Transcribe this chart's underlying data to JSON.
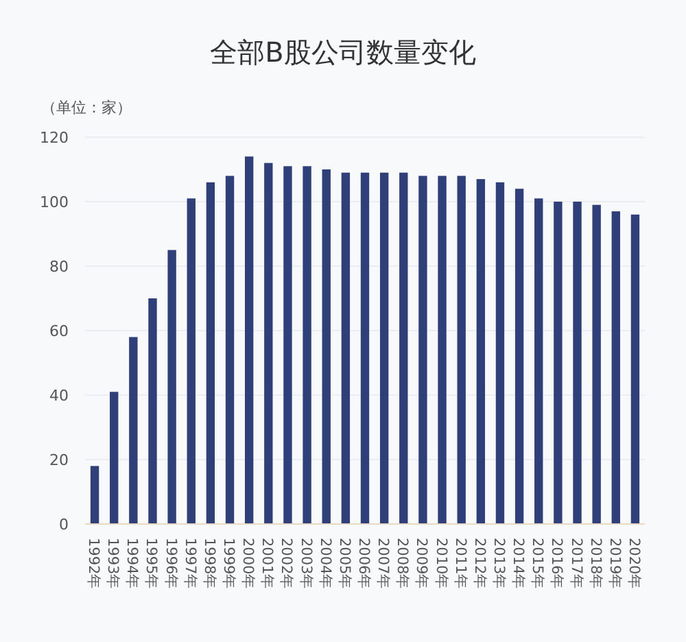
{
  "chart_data": {
    "type": "bar",
    "title": "全部B股公司数量变化",
    "ylabel": "（单位：家）",
    "categories": [
      "1992年",
      "1993年",
      "1994年",
      "1995年",
      "1996年",
      "1997年",
      "1998年",
      "1999年",
      "2000年",
      "2001年",
      "2002年",
      "2003年",
      "2004年",
      "2005年",
      "2006年",
      "2007年",
      "2008年",
      "2009年",
      "2010年",
      "2011年",
      "2012年",
      "2013年",
      "2014年",
      "2015年",
      "2016年",
      "2017年",
      "2018年",
      "2019年",
      "2020年"
    ],
    "values": [
      18,
      41,
      58,
      70,
      85,
      101,
      106,
      108,
      114,
      112,
      111,
      111,
      110,
      109,
      109,
      109,
      109,
      108,
      108,
      108,
      107,
      106,
      104,
      101,
      100,
      100,
      99,
      97,
      96
    ],
    "color": "#2e3f7a",
    "ylim": [
      0,
      120
    ],
    "yticks": [
      0,
      20,
      40,
      60,
      80,
      100,
      120
    ],
    "grid": "y"
  }
}
